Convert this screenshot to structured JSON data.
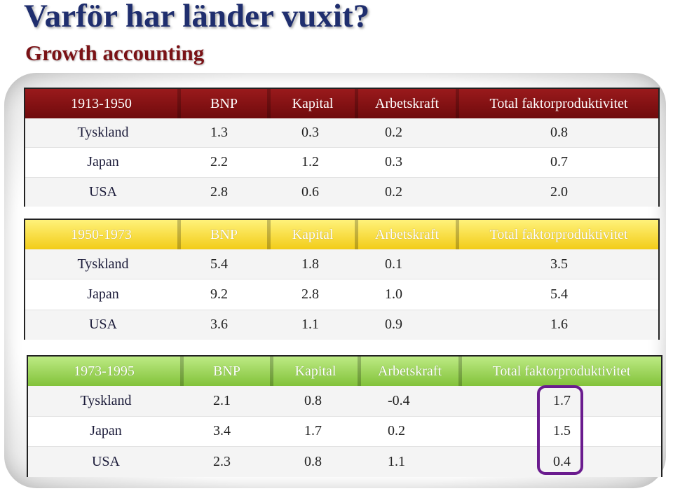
{
  "slide": {
    "title": "Varför har länder vuxit?",
    "subtitle": "Growth accounting"
  },
  "tables": [
    {
      "period": "1913-1950",
      "header_color": "#8b1214",
      "columns": [
        "BNP",
        "Kapital",
        "Arbetskraft",
        "Total faktorproduktivitet"
      ],
      "rows": [
        {
          "country": "Tyskland",
          "values": [
            "1.3",
            "0.3",
            "0.2",
            "0.8"
          ]
        },
        {
          "country": "Japan",
          "values": [
            "2.2",
            "1.2",
            "0.3",
            "0.7"
          ]
        },
        {
          "country": "USA",
          "values": [
            "2.8",
            "0.6",
            "0.2",
            "2.0"
          ]
        }
      ]
    },
    {
      "period": "1950-1973",
      "header_color": "#f5d52a",
      "columns": [
        "BNP",
        "Kapital",
        "Arbetskraft",
        "Total faktorproduktivitet"
      ],
      "rows": [
        {
          "country": "Tyskland",
          "values": [
            "5.4",
            "1.8",
            "0.1",
            "3.5"
          ]
        },
        {
          "country": "Japan",
          "values": [
            "9.2",
            "2.8",
            "1.0",
            "5.4"
          ]
        },
        {
          "country": "USA",
          "values": [
            "3.6",
            "1.1",
            "0.9",
            "1.6"
          ]
        }
      ]
    },
    {
      "period": "1973-1995",
      "header_color": "#96d24e",
      "columns": [
        "BNP",
        "Kapital",
        "Arbetskraft",
        "Total faktorproduktivitet"
      ],
      "rows": [
        {
          "country": "Tyskland",
          "values": [
            "2.1",
            "0.8",
            "-0.4",
            "1.7"
          ]
        },
        {
          "country": "Japan",
          "values": [
            "3.4",
            "1.7",
            "0.2",
            "1.5"
          ]
        },
        {
          "country": "USA",
          "values": [
            "2.3",
            "0.8",
            "1.1",
            "0.4"
          ]
        }
      ]
    }
  ],
  "highlight": {
    "color": "#6a1b8e"
  }
}
